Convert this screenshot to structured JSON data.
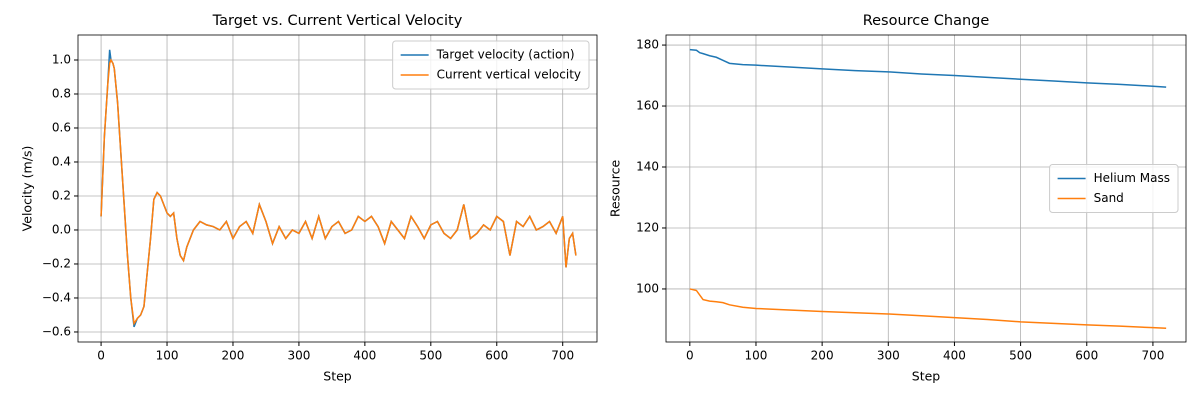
{
  "chart_data": [
    {
      "type": "line",
      "title": "Target vs. Current Vertical Velocity",
      "xlabel": "Step",
      "ylabel": "Velocity (m/s)",
      "xlim": [
        -35,
        752
      ],
      "ylim": [
        -0.659,
        1.147
      ],
      "xticks": [
        0,
        100,
        200,
        300,
        400,
        500,
        600,
        700
      ],
      "yticks": [
        {
          "value": -0.6,
          "label": "−0.6"
        },
        {
          "value": -0.4,
          "label": "−0.4"
        },
        {
          "value": -0.2,
          "label": "−0.2"
        },
        {
          "value": 0,
          "label": "0.0"
        },
        {
          "value": 0.2,
          "label": "0.2"
        },
        {
          "value": 0.4,
          "label": "0.4"
        },
        {
          "value": 0.6,
          "label": "0.6"
        },
        {
          "value": 0.8,
          "label": "0.8"
        },
        {
          "value": 1.0,
          "label": "1.0"
        }
      ],
      "grid": true,
      "legend": "upper right",
      "x": [
        0,
        5,
        10,
        13,
        15,
        18,
        20,
        25,
        30,
        35,
        40,
        45,
        50,
        55,
        60,
        65,
        70,
        75,
        80,
        85,
        90,
        95,
        100,
        105,
        110,
        115,
        120,
        125,
        130,
        140,
        150,
        160,
        170,
        180,
        190,
        200,
        210,
        220,
        230,
        240,
        250,
        260,
        270,
        280,
        290,
        300,
        310,
        320,
        330,
        340,
        350,
        360,
        370,
        380,
        390,
        400,
        410,
        420,
        430,
        440,
        450,
        460,
        470,
        480,
        490,
        500,
        510,
        520,
        530,
        540,
        550,
        560,
        570,
        580,
        590,
        600,
        610,
        620,
        630,
        640,
        650,
        660,
        670,
        680,
        690,
        700,
        705,
        710,
        715,
        720
      ],
      "series": [
        {
          "name": "Target velocity (action)",
          "color": "#1f77b4",
          "values": [
            0.08,
            0.55,
            0.85,
            1.06,
            1.0,
            0.98,
            0.95,
            0.75,
            0.45,
            0.15,
            -0.15,
            -0.4,
            -0.57,
            -0.52,
            -0.5,
            -0.45,
            -0.25,
            -0.05,
            0.18,
            0.22,
            0.2,
            0.15,
            0.1,
            0.08,
            0.1,
            -0.05,
            -0.15,
            -0.18,
            -0.1,
            0.0,
            0.05,
            0.03,
            0.02,
            0.0,
            0.05,
            -0.05,
            0.02,
            0.05,
            -0.02,
            0.15,
            0.05,
            -0.08,
            0.02,
            -0.05,
            0.0,
            -0.02,
            0.05,
            -0.05,
            0.08,
            -0.05,
            0.02,
            0.05,
            -0.02,
            0.0,
            0.08,
            0.05,
            0.08,
            0.02,
            -0.08,
            0.05,
            0.0,
            -0.05,
            0.08,
            0.02,
            -0.05,
            0.03,
            0.05,
            -0.02,
            -0.05,
            0.0,
            0.15,
            -0.05,
            -0.02,
            0.03,
            0.0,
            0.08,
            0.05,
            -0.15,
            0.05,
            0.02,
            0.08,
            0.0,
            0.02,
            0.05,
            -0.02,
            0.08,
            -0.22,
            -0.05,
            -0.02,
            -0.15
          ]
        },
        {
          "name": "Current vertical velocity",
          "color": "#ff7f0e",
          "values": [
            0.08,
            0.55,
            0.85,
            0.98,
            1.0,
            0.98,
            0.95,
            0.75,
            0.45,
            0.15,
            -0.15,
            -0.4,
            -0.55,
            -0.52,
            -0.5,
            -0.45,
            -0.25,
            -0.05,
            0.18,
            0.22,
            0.2,
            0.15,
            0.1,
            0.08,
            0.1,
            -0.05,
            -0.15,
            -0.18,
            -0.1,
            0.0,
            0.05,
            0.03,
            0.02,
            0.0,
            0.05,
            -0.05,
            0.02,
            0.05,
            -0.02,
            0.15,
            0.05,
            -0.08,
            0.02,
            -0.05,
            0.0,
            -0.02,
            0.05,
            -0.05,
            0.08,
            -0.05,
            0.02,
            0.05,
            -0.02,
            0.0,
            0.08,
            0.05,
            0.08,
            0.02,
            -0.08,
            0.05,
            0.0,
            -0.05,
            0.08,
            0.02,
            -0.05,
            0.03,
            0.05,
            -0.02,
            -0.05,
            0.0,
            0.15,
            -0.05,
            -0.02,
            0.03,
            0.0,
            0.08,
            0.05,
            -0.15,
            0.05,
            0.02,
            0.08,
            0.0,
            0.02,
            0.05,
            -0.02,
            0.08,
            -0.22,
            -0.05,
            -0.02,
            -0.15
          ]
        }
      ]
    },
    {
      "type": "line",
      "title": "Resource Change",
      "xlabel": "Step",
      "ylabel": "Resource",
      "xlim": [
        -36,
        750
      ],
      "ylim": [
        82.6,
        183.3
      ],
      "xticks": [
        0,
        100,
        200,
        300,
        400,
        500,
        600,
        700
      ],
      "yticks": [
        100,
        120,
        140,
        160,
        180
      ],
      "grid": true,
      "legend": "center right",
      "x": [
        0,
        10,
        15,
        20,
        30,
        40,
        50,
        60,
        80,
        100,
        150,
        200,
        250,
        300,
        350,
        400,
        450,
        500,
        550,
        600,
        650,
        700,
        720
      ],
      "series": [
        {
          "name": "Helium Mass",
          "color": "#1f77b4",
          "values": [
            178.5,
            178.3,
            177.5,
            177.2,
            176.5,
            176,
            175,
            174,
            173.6,
            173.4,
            172.8,
            172.2,
            171.6,
            171.2,
            170.5,
            170,
            169.4,
            168.8,
            168.2,
            167.6,
            167.1,
            166.5,
            166.2
          ]
        },
        {
          "name": "Sand",
          "color": "#ff7f0e",
          "values": [
            100,
            99.5,
            98,
            96.5,
            96,
            95.8,
            95.5,
            94.8,
            94,
            93.6,
            93.1,
            92.6,
            92.2,
            91.8,
            91.2,
            90.6,
            90,
            89.2,
            88.7,
            88.2,
            87.8,
            87.3,
            87.1
          ]
        }
      ]
    }
  ]
}
